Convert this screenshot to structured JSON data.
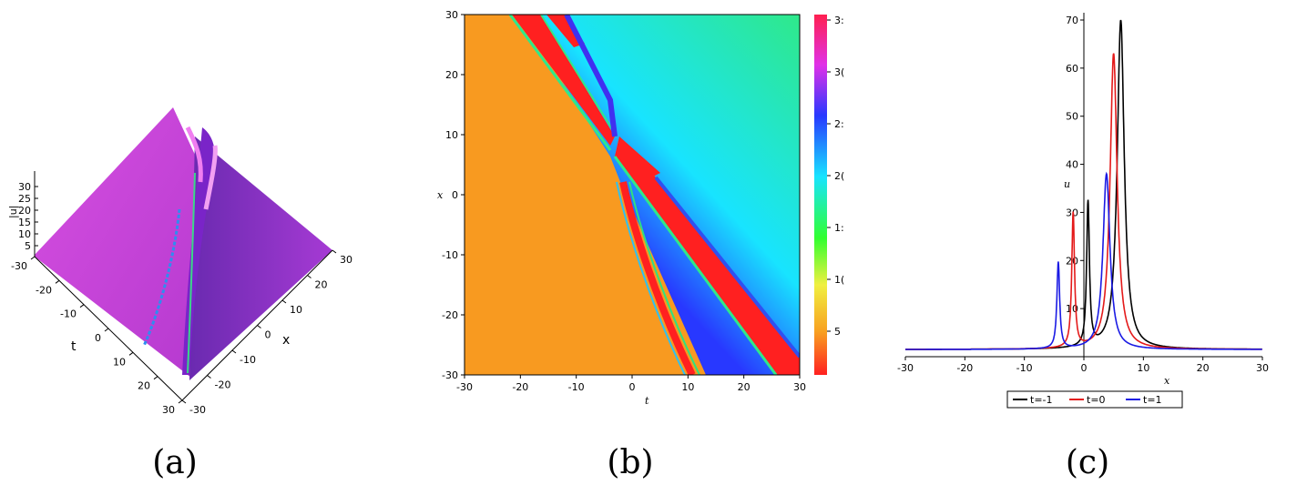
{
  "chart_data": [
    {
      "panel": "(a)",
      "type": "surface",
      "zlabel": "|u|",
      "xlabel": "x",
      "ylabel": "t",
      "z_ticks": [
        "5",
        "10",
        "15",
        "20",
        "25",
        "30"
      ],
      "t_ticks": [
        "-30",
        "-20",
        "-10",
        "0",
        "10",
        "20",
        "30"
      ],
      "x_ticks": [
        "30",
        "20",
        "10",
        "0",
        "-10",
        "-20",
        "-30"
      ],
      "colors": {
        "surface": "#c93fd6",
        "surface_dark": "#7b2ab8",
        "ridge": "#2f8cf0",
        "ridge_light": "#3bd68a"
      }
    },
    {
      "panel": "(b)",
      "type": "heatmap",
      "xlabel": "t",
      "ylabel": "x",
      "xlim": [
        -30,
        30
      ],
      "ylim": [
        -30,
        30
      ],
      "x_ticks": [
        "-30",
        "-20",
        "-10",
        "0",
        "10",
        "20",
        "30"
      ],
      "y_ticks": [
        "30",
        "20",
        "10",
        "0",
        "-10",
        "-20",
        "-30"
      ],
      "colorbar_ticks": [
        "3:",
        "3(",
        "2:",
        "2(",
        "1:",
        "1(",
        "5"
      ],
      "colors": {
        "low": "#ff2b2b",
        "mid_low": "#f89a20",
        "mid": "#2fe88a",
        "mid_high": "#18e4ff",
        "high": "#2838ff",
        "top": "#e030e8"
      }
    },
    {
      "panel": "(c)",
      "type": "line",
      "xlabel": "x",
      "ylabel": "u",
      "xlim": [
        -30,
        30
      ],
      "ylim": [
        0,
        70
      ],
      "x_ticks": [
        "-30",
        "-20",
        "-10",
        "0",
        "10",
        "20",
        "30"
      ],
      "y_ticks": [
        "10",
        "20",
        "30",
        "40",
        "50",
        "60",
        "70"
      ],
      "series": [
        {
          "name": "t=-1",
          "color": "#000000",
          "peaks": [
            {
              "x": 0.7,
              "y": 31.5
            },
            {
              "x": 6.2,
              "y": 70
            }
          ]
        },
        {
          "name": "t=0",
          "color": "#e41a1a",
          "peaks": [
            {
              "x": -1.8,
              "y": 29.5
            },
            {
              "x": 5.0,
              "y": 63
            }
          ]
        },
        {
          "name": "t=1",
          "color": "#1a1ae4",
          "peaks": [
            {
              "x": -4.3,
              "y": 19.5
            },
            {
              "x": 3.8,
              "y": 38
            }
          ]
        }
      ],
      "baseline": 1.5
    }
  ],
  "captions": {
    "a": "(a)",
    "b": "(b)",
    "c": "(c)"
  }
}
